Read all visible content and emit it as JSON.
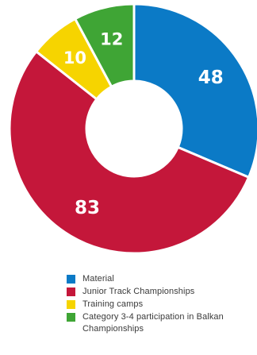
{
  "chart_data": {
    "type": "pie",
    "variant": "donut",
    "title": "",
    "slices": [
      {
        "label": "Material",
        "value": 48,
        "color": "#0b7ac6"
      },
      {
        "label": "Junior Track Championships",
        "value": 83,
        "color": "#c4173a"
      },
      {
        "label": "Training camps",
        "value": 10,
        "color": "#f6d400"
      },
      {
        "label": "Category 3-4 participation in Balkan Championships",
        "value": 12,
        "color": "#3fa535"
      }
    ],
    "data_labels": [
      "48",
      "83",
      "10",
      "12"
    ],
    "legend_position": "bottom"
  },
  "legend": {
    "items": [
      {
        "label": "Material",
        "color": "#0b7ac6"
      },
      {
        "label": "Junior Track Championships",
        "color": "#c4173a"
      },
      {
        "label": "Training camps",
        "color": "#f6d400"
      },
      {
        "label": "Category 3-4 participation in Balkan Championships",
        "color": "#3fa535"
      }
    ]
  }
}
